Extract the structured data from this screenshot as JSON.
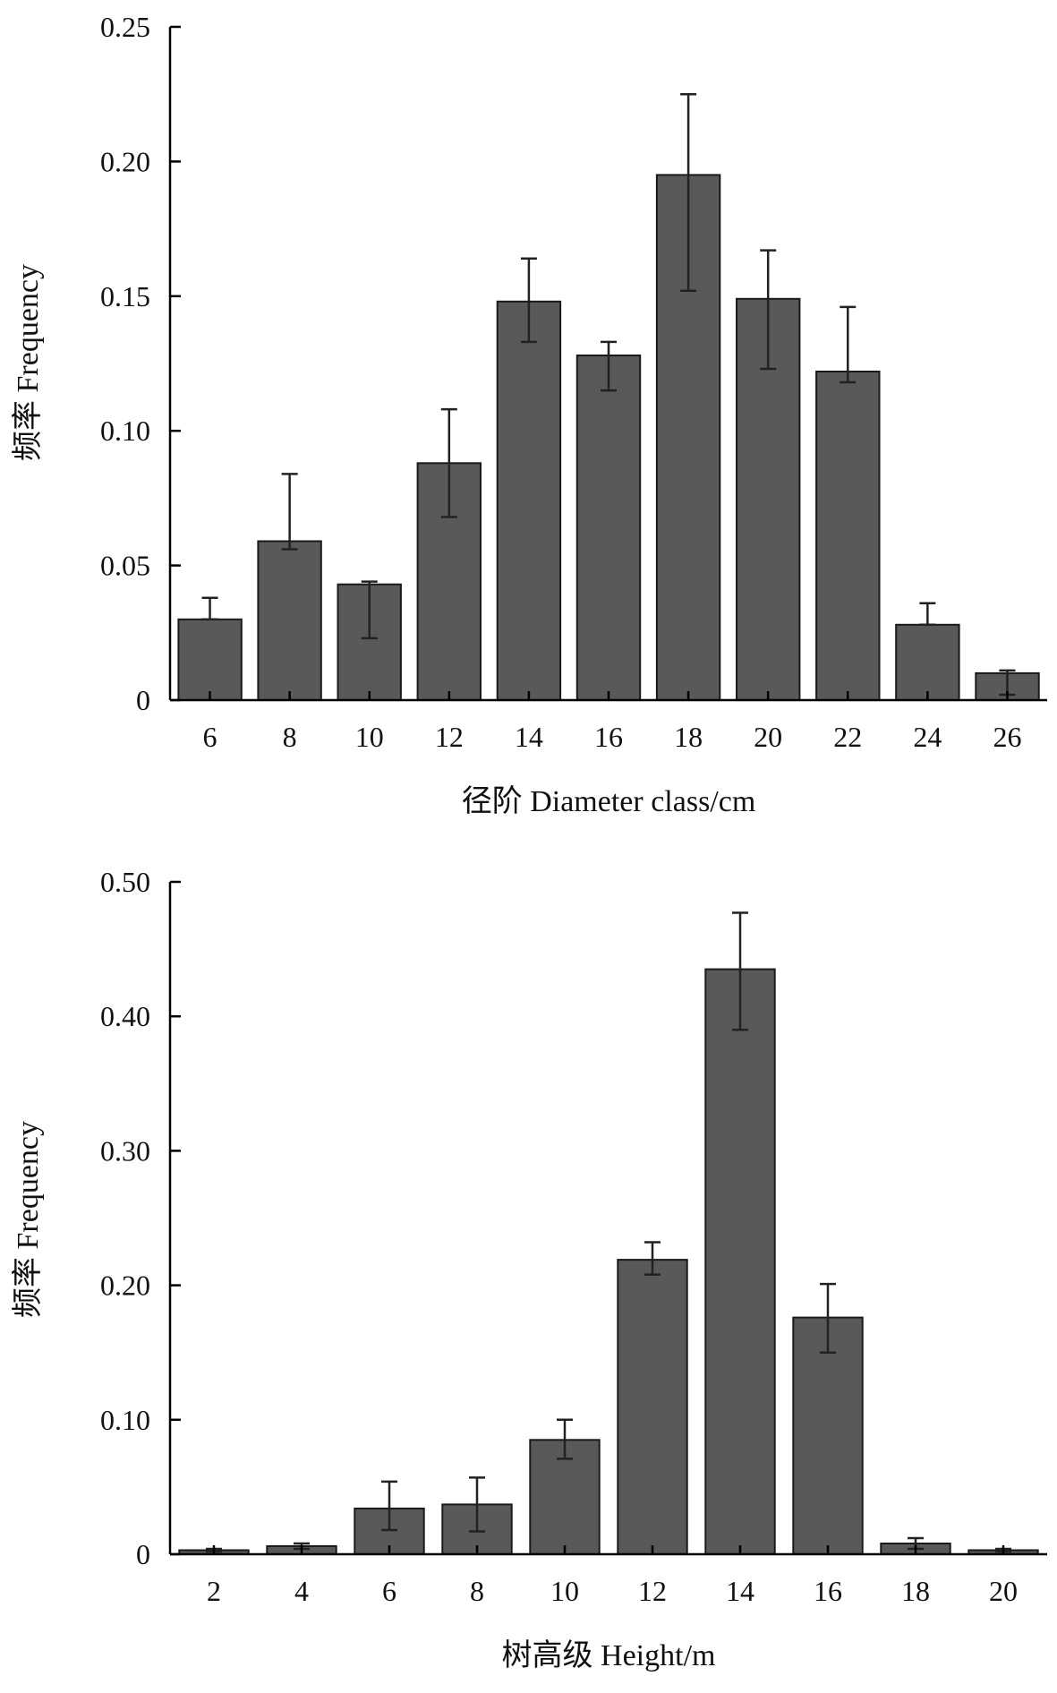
{
  "style": {
    "bar_fill": "#595959",
    "bar_stroke": "#1a1a1a",
    "axis_color": "#000000",
    "errorbar_color": "#222222"
  },
  "chart_data": [
    {
      "type": "bar",
      "xlabel": "径阶  Diameter class/cm",
      "ylabel": "频率  Frequency",
      "ylim": [
        0,
        0.25
      ],
      "yticks": [
        "0",
        "0.05",
        "0.10",
        "0.15",
        "0.20",
        "0.25"
      ],
      "grid": false,
      "categories": [
        "6",
        "8",
        "10",
        "12",
        "14",
        "16",
        "18",
        "20",
        "22",
        "24",
        "26"
      ],
      "values": [
        0.03,
        0.059,
        0.043,
        0.088,
        0.148,
        0.128,
        0.195,
        0.149,
        0.122,
        0.028,
        0.01
      ],
      "error_high": [
        0.038,
        0.084,
        0.044,
        0.108,
        0.164,
        0.133,
        0.225,
        0.167,
        0.146,
        0.036,
        0.011
      ],
      "error_low": [
        0.03,
        0.056,
        0.023,
        0.068,
        0.133,
        0.115,
        0.152,
        0.123,
        0.118,
        0.028,
        0.002
      ]
    },
    {
      "type": "bar",
      "xlabel": "树高级  Height/m",
      "ylabel": "频率  Frequency",
      "ylim": [
        0,
        0.5
      ],
      "yticks": [
        "0",
        "0.10",
        "0.20",
        "0.30",
        "0.40",
        "0.50"
      ],
      "grid": false,
      "categories": [
        "2",
        "4",
        "6",
        "8",
        "10",
        "12",
        "14",
        "16",
        "18",
        "20"
      ],
      "values": [
        0.003,
        0.006,
        0.034,
        0.037,
        0.085,
        0.219,
        0.435,
        0.176,
        0.008,
        0.003
      ],
      "error_high": [
        0.004,
        0.008,
        0.054,
        0.057,
        0.1,
        0.232,
        0.477,
        0.201,
        0.012,
        0.004
      ],
      "error_low": [
        0.002,
        0.004,
        0.018,
        0.017,
        0.071,
        0.208,
        0.39,
        0.15,
        0.004,
        0.002
      ]
    }
  ]
}
